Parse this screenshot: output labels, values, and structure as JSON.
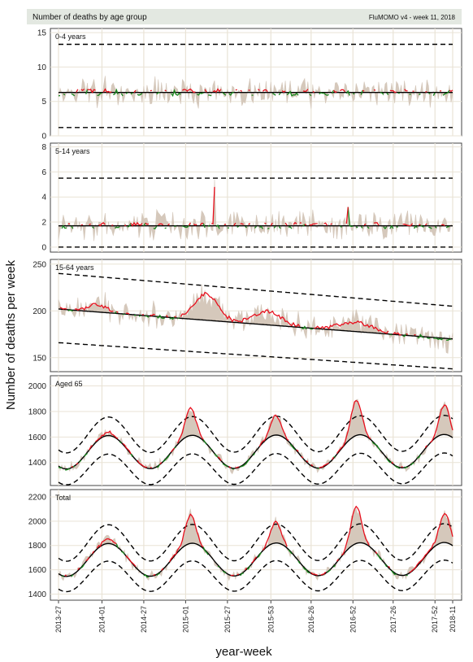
{
  "header": {
    "title": "Number of deaths by age group",
    "version": "FluMOMO v4 - week 11, 2018"
  },
  "y_axis_title": "Number of deaths per week",
  "x_axis_title": "year-week",
  "x_ticks": [
    "2013-27",
    "2014-01",
    "2014-27",
    "2015-01",
    "2015-27",
    "2015-53",
    "2016-26",
    "2016-52",
    "2017-26",
    "2017-52",
    "2018-11"
  ],
  "x_tick_weeks": [
    0,
    27,
    53,
    79,
    105,
    132,
    157,
    183,
    208,
    234,
    245
  ],
  "colors": {
    "band": "#d5c8bb",
    "baseline": "#000000",
    "limits": "#000000",
    "corrected": "#e8101e",
    "observed": "#17861d",
    "grid": "#e9e3d6",
    "panel_border": "#444444",
    "header_bg": "#e3e8e1"
  },
  "chart_data": [
    {
      "type": "line",
      "title": "0-4 years",
      "ylim": [
        0,
        15.6
      ],
      "yticks": [
        0,
        5,
        10,
        15
      ],
      "n_weeks": 246,
      "baseline": {
        "start": 6.3,
        "end": 6.3,
        "amp": 0
      },
      "upper_limit": {
        "start": 13.3,
        "end": 13.3
      },
      "lower_limit": {
        "start": 1.2,
        "end": 1.2
      },
      "noise": {
        "observed": 1.6,
        "corrected": 0.5,
        "observed_tail": 1.0
      },
      "seed": 11
    },
    {
      "type": "line",
      "title": "5-14 years",
      "ylim": [
        -0.4,
        8.3
      ],
      "yticks": [
        0,
        2,
        4,
        6,
        8
      ],
      "n_weeks": 246,
      "baseline": {
        "start": 1.7,
        "end": 1.7,
        "amp": 0
      },
      "upper_limit": {
        "start": 5.5,
        "end": 5.5
      },
      "lower_limit": {
        "start": 0.0,
        "end": 0.0
      },
      "noise": {
        "observed": 1.0,
        "corrected": 0.25,
        "observed_tail": 0.6
      },
      "spikes": [
        {
          "week": 97,
          "value": 4.8
        },
        {
          "week": 180,
          "value": 3.2
        }
      ],
      "seed": 23
    },
    {
      "type": "line",
      "title": "15-64 years",
      "ylim": [
        135,
        255
      ],
      "yticks": [
        150,
        200,
        250
      ],
      "n_weeks": 246,
      "baseline": {
        "start": 202,
        "end": 170,
        "amp": 0
      },
      "upper_limit": {
        "start": 240,
        "end": 205
      },
      "lower_limit": {
        "start": 166,
        "end": 138
      },
      "noise": {
        "observed": 12,
        "corrected": 2,
        "observed_tail": 6
      },
      "bumps": [
        {
          "week": 24,
          "height": 8,
          "width": 8
        },
        {
          "week": 92,
          "height": 28,
          "width": 10
        },
        {
          "week": 130,
          "height": 14,
          "width": 12
        },
        {
          "week": 185,
          "height": 10,
          "width": 14
        }
      ],
      "seed": 37
    },
    {
      "type": "line",
      "title": "Aged 65",
      "ylim": [
        1220,
        2080
      ],
      "yticks": [
        1400,
        1600,
        1800,
        2000
      ],
      "n_weeks": 246,
      "baseline": {
        "start": 1480,
        "end": 1490,
        "amp": 130
      },
      "upper_limit": {
        "start": 1615,
        "end": 1630,
        "amp": 140
      },
      "lower_limit": {
        "start": 1345,
        "end": 1355,
        "amp": 120
      },
      "noise": {
        "observed": 40,
        "corrected": 10,
        "observed_tail": 25
      },
      "peaks": [
        {
          "week": 31,
          "height": 30
        },
        {
          "week": 82,
          "height": 210
        },
        {
          "week": 135,
          "height": 150
        },
        {
          "week": 185,
          "height": 280
        },
        {
          "week": 240,
          "height": 230
        }
      ],
      "seed": 53
    },
    {
      "type": "line",
      "title": "Total",
      "ylim": [
        1350,
        2260
      ],
      "yticks": [
        1400,
        1600,
        1800,
        2000,
        2200
      ],
      "n_weeks": 246,
      "baseline": {
        "start": 1680,
        "end": 1690,
        "amp": 135
      },
      "upper_limit": {
        "start": 1820,
        "end": 1830,
        "amp": 150
      },
      "lower_limit": {
        "start": 1545,
        "end": 1555,
        "amp": 125
      },
      "noise": {
        "observed": 45,
        "corrected": 12,
        "observed_tail": 28
      },
      "peaks": [
        {
          "week": 31,
          "height": 40
        },
        {
          "week": 82,
          "height": 230
        },
        {
          "week": 135,
          "height": 170
        },
        {
          "week": 185,
          "height": 300
        },
        {
          "week": 240,
          "height": 240
        }
      ],
      "seed": 71
    }
  ]
}
